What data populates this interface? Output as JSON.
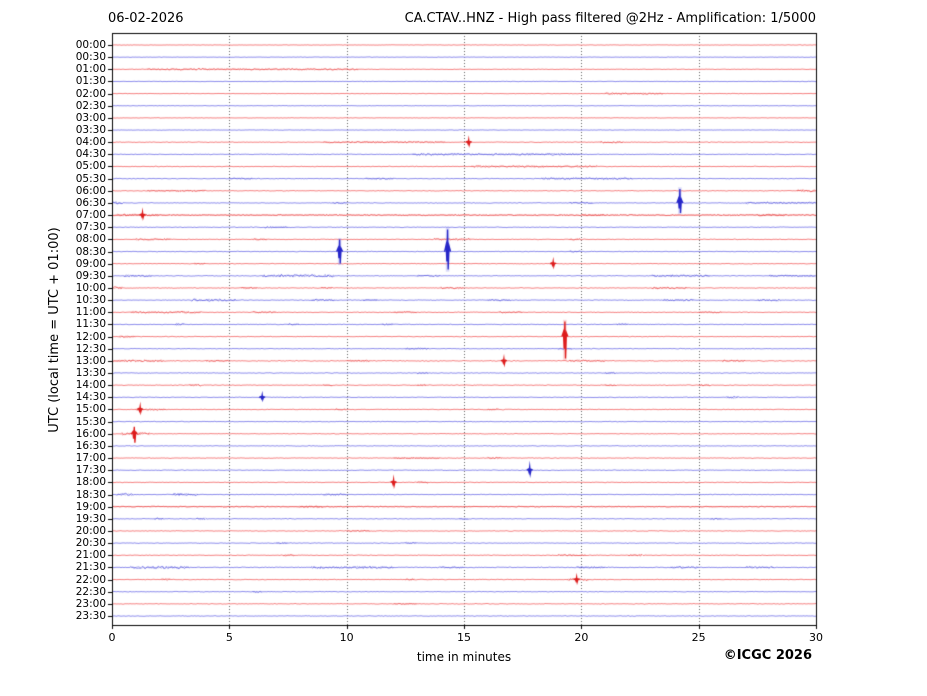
{
  "header": {
    "date": "06-02-2026",
    "title": "CA.CTAV..HNZ - High pass filtered @2Hz - Amplification: 1/5000"
  },
  "y_axis": {
    "label": "UTC (local time = UTC + 01:00)"
  },
  "x_axis": {
    "label": "time in minutes"
  },
  "footer": {
    "copyright": "©ICGC 2026"
  },
  "chart_data": {
    "type": "line",
    "subtype": "helicorder-drum-plot",
    "station": "CA.CTAV..HNZ",
    "date": "06-02-2026",
    "filter": "High pass filtered @2Hz",
    "amplification": "1/5000",
    "x_range": [
      0,
      30
    ],
    "x_ticks": [
      0,
      5,
      10,
      15,
      20,
      25,
      30
    ],
    "grid_minutes": [
      5,
      10,
      15,
      20,
      25
    ],
    "legend": "none",
    "colors": {
      "red_line": "#f58080",
      "red_dark": "#dd1c1c",
      "blue_line": "#8c8cec",
      "blue_dark": "#2626c8",
      "grid": "#606060",
      "frame": "#000000",
      "background": "#ffffff"
    },
    "rows": [
      {
        "label": "00:00",
        "color": "red"
      },
      {
        "label": "00:30",
        "color": "blue"
      },
      {
        "label": "01:00",
        "color": "red"
      },
      {
        "label": "01:30",
        "color": "blue"
      },
      {
        "label": "02:00",
        "color": "red"
      },
      {
        "label": "02:30",
        "color": "blue"
      },
      {
        "label": "03:00",
        "color": "red"
      },
      {
        "label": "03:30",
        "color": "blue"
      },
      {
        "label": "04:00",
        "color": "red"
      },
      {
        "label": "04:30",
        "color": "blue"
      },
      {
        "label": "05:00",
        "color": "red"
      },
      {
        "label": "05:30",
        "color": "blue"
      },
      {
        "label": "06:00",
        "color": "red"
      },
      {
        "label": "06:30",
        "color": "blue"
      },
      {
        "label": "07:00",
        "color": "red"
      },
      {
        "label": "07:30",
        "color": "blue"
      },
      {
        "label": "08:00",
        "color": "red"
      },
      {
        "label": "08:30",
        "color": "blue"
      },
      {
        "label": "09:00",
        "color": "red"
      },
      {
        "label": "09:30",
        "color": "blue"
      },
      {
        "label": "10:00",
        "color": "red"
      },
      {
        "label": "10:30",
        "color": "blue"
      },
      {
        "label": "11:00",
        "color": "red"
      },
      {
        "label": "11:30",
        "color": "blue"
      },
      {
        "label": "12:00",
        "color": "red"
      },
      {
        "label": "12:30",
        "color": "blue"
      },
      {
        "label": "13:00",
        "color": "red"
      },
      {
        "label": "13:30",
        "color": "blue"
      },
      {
        "label": "14:00",
        "color": "red"
      },
      {
        "label": "14:30",
        "color": "blue"
      },
      {
        "label": "15:00",
        "color": "red"
      },
      {
        "label": "15:30",
        "color": "blue"
      },
      {
        "label": "16:00",
        "color": "red"
      },
      {
        "label": "16:30",
        "color": "blue"
      },
      {
        "label": "17:00",
        "color": "red"
      },
      {
        "label": "17:30",
        "color": "blue"
      },
      {
        "label": "18:00",
        "color": "red"
      },
      {
        "label": "18:30",
        "color": "blue"
      },
      {
        "label": "19:00",
        "color": "red"
      },
      {
        "label": "19:30",
        "color": "blue"
      },
      {
        "label": "20:00",
        "color": "red"
      },
      {
        "label": "20:30",
        "color": "blue"
      },
      {
        "label": "21:00",
        "color": "red"
      },
      {
        "label": "21:30",
        "color": "blue"
      },
      {
        "label": "22:00",
        "color": "red"
      },
      {
        "label": "22:30",
        "color": "blue"
      },
      {
        "label": "23:00",
        "color": "red"
      },
      {
        "label": "23:30",
        "color": "blue"
      }
    ],
    "spikes": [
      {
        "row": 8,
        "minute": 15.2,
        "up": 2.5,
        "down": 2.5
      },
      {
        "row": 13,
        "minute": 24.2,
        "up": 14,
        "down": 10
      },
      {
        "row": 14,
        "minute": 1.3,
        "up": 3,
        "down": 2.5
      },
      {
        "row": 17,
        "minute": 9.7,
        "up": 12,
        "down": 12
      },
      {
        "row": 17,
        "minute": 14.3,
        "up": 22,
        "down": 18
      },
      {
        "row": 18,
        "minute": 18.8,
        "up": 2.5,
        "down": 2.5
      },
      {
        "row": 24,
        "minute": 19.3,
        "up": 15,
        "down": 22
      },
      {
        "row": 26,
        "minute": 16.7,
        "up": 2.5,
        "down": 3
      },
      {
        "row": 29,
        "minute": 6.4,
        "up": 2.5,
        "down": 2
      },
      {
        "row": 30,
        "minute": 1.2,
        "up": 3,
        "down": 2.5
      },
      {
        "row": 32,
        "minute": 0.95,
        "up": 7,
        "down": 9
      },
      {
        "row": 35,
        "minute": 17.8,
        "up": 3.5,
        "down": 3.5
      },
      {
        "row": 36,
        "minute": 12.0,
        "up": 3,
        "down": 3
      },
      {
        "row": 44,
        "minute": 19.8,
        "up": 2.5,
        "down": 2.5
      }
    ],
    "fuzz_segments": [
      [
        2,
        1.5,
        10.5,
        0.9
      ],
      [
        4,
        21,
        23.5,
        0.9
      ],
      [
        8,
        9,
        14.2,
        0.9
      ],
      [
        8,
        20.8,
        21.8,
        0.8
      ],
      [
        9,
        12.8,
        20,
        0.95
      ],
      [
        10,
        15.3,
        20.7,
        0.95
      ],
      [
        11,
        5,
        6,
        0.8
      ],
      [
        11,
        10.8,
        12,
        0.9
      ],
      [
        11,
        18.3,
        22.2,
        1.1
      ],
      [
        12,
        1.5,
        4,
        0.8
      ],
      [
        12,
        29.2,
        30,
        1.4
      ],
      [
        13,
        0,
        0.5,
        1.7
      ],
      [
        13,
        9.4,
        10,
        1.2
      ],
      [
        13,
        19.5,
        20.5,
        0.8
      ],
      [
        13,
        27,
        30,
        0.95
      ],
      [
        14,
        0,
        30,
        0.75
      ],
      [
        14,
        0.2,
        2,
        1.2
      ],
      [
        14,
        20,
        21,
        1.0
      ],
      [
        14,
        27.5,
        28.7,
        1.3
      ],
      [
        15,
        6.5,
        7.5,
        0.8
      ],
      [
        16,
        1,
        2.5,
        1.0
      ],
      [
        16,
        6,
        6.6,
        1.0
      ],
      [
        16,
        13.7,
        15.3,
        1.15
      ],
      [
        16,
        19.5,
        20,
        1.0
      ],
      [
        17,
        19.5,
        20,
        1.0
      ],
      [
        18,
        3.5,
        4,
        0.8
      ],
      [
        19,
        0.5,
        1.7,
        1.1
      ],
      [
        19,
        6.4,
        9.5,
        1.4
      ],
      [
        19,
        13,
        14,
        1.0
      ],
      [
        19,
        23,
        25.5,
        1.15
      ],
      [
        19,
        28,
        30,
        1.0
      ],
      [
        20,
        0,
        0.45,
        1.9
      ],
      [
        20,
        5.5,
        6.2,
        1.15
      ],
      [
        20,
        8.9,
        9.4,
        1.0
      ],
      [
        20,
        14,
        15,
        0.95
      ],
      [
        20,
        23,
        24.5,
        1.1
      ],
      [
        21,
        3.4,
        5.3,
        1.5
      ],
      [
        21,
        8.5,
        9.5,
        1.15
      ],
      [
        21,
        10.7,
        11.3,
        1.0
      ],
      [
        21,
        16,
        17,
        0.85
      ],
      [
        21,
        23.5,
        24.8,
        1.0
      ],
      [
        21,
        27.5,
        28.5,
        1.0
      ],
      [
        22,
        0.8,
        3.8,
        1.1
      ],
      [
        22,
        6,
        7,
        0.85
      ],
      [
        22,
        12,
        13,
        0.85
      ],
      [
        22,
        16.5,
        17.5,
        0.85
      ],
      [
        22,
        25,
        26,
        0.85
      ],
      [
        23,
        2.7,
        3.1,
        1.15
      ],
      [
        23,
        7.5,
        8,
        1.0
      ],
      [
        23,
        11.5,
        12,
        0.85
      ],
      [
        23,
        21.5,
        22,
        0.85
      ],
      [
        24,
        0.3,
        1,
        0.85
      ],
      [
        25,
        12.5,
        13.5,
        0.85
      ],
      [
        25,
        19,
        19.6,
        1.0
      ],
      [
        26,
        0,
        2.2,
        1.25
      ],
      [
        26,
        4,
        5,
        1.0
      ],
      [
        26,
        10,
        11,
        1.0
      ],
      [
        26,
        19.5,
        21,
        1.1
      ],
      [
        26,
        26,
        27,
        0.95
      ],
      [
        27,
        13,
        13.5,
        0.85
      ],
      [
        27,
        21,
        21.5,
        0.95
      ],
      [
        28,
        3.3,
        3.8,
        1.15
      ],
      [
        28,
        9,
        9.4,
        0.85
      ],
      [
        28,
        13,
        13.4,
        0.85
      ],
      [
        28,
        21,
        21.5,
        0.85
      ],
      [
        28,
        25,
        25.5,
        0.85
      ],
      [
        29,
        26.2,
        26.7,
        0.95
      ],
      [
        30,
        1,
        2.3,
        1.0
      ],
      [
        30,
        9.5,
        10,
        0.95
      ],
      [
        30,
        16,
        16.5,
        0.85
      ],
      [
        32,
        0.4,
        1.6,
        1.4
      ],
      [
        34,
        12,
        14,
        0.8
      ],
      [
        34,
        16,
        16.6,
        1.1
      ],
      [
        36,
        13,
        13.5,
        0.95
      ],
      [
        37,
        0.2,
        0.9,
        1.35
      ],
      [
        37,
        2.6,
        3.7,
        1.35
      ],
      [
        37,
        9,
        10,
        1.0
      ],
      [
        38,
        0,
        30,
        0.6
      ],
      [
        38,
        8,
        9,
        0.95
      ],
      [
        39,
        1.8,
        2.2,
        1.15
      ],
      [
        39,
        3.6,
        4,
        1.0
      ],
      [
        39,
        14.8,
        15.2,
        0.95
      ],
      [
        39,
        25.5,
        26,
        0.85
      ],
      [
        40,
        10,
        11,
        0.7
      ],
      [
        41,
        7,
        7.5,
        0.95
      ],
      [
        41,
        12.5,
        13,
        0.85
      ],
      [
        42,
        7.3,
        7.8,
        0.95
      ],
      [
        42,
        19,
        20.2,
        0.95
      ],
      [
        42,
        22,
        22.6,
        0.95
      ],
      [
        43,
        0.8,
        3.3,
        1.5
      ],
      [
        43,
        8.5,
        12,
        1.25
      ],
      [
        43,
        14,
        15,
        1.0
      ],
      [
        43,
        19.8,
        21,
        1.0
      ],
      [
        43,
        23.8,
        25,
        1.0
      ],
      [
        43,
        27,
        28.2,
        1.0
      ],
      [
        44,
        2.1,
        2.5,
        1.15
      ],
      [
        44,
        12.5,
        12.9,
        1.0
      ],
      [
        44,
        19.4,
        20.3,
        1.25
      ],
      [
        45,
        6,
        6.4,
        0.95
      ],
      [
        46,
        12,
        13,
        0.6
      ]
    ],
    "base_noise": 0.42,
    "row_noise": {
      "0": 0.3,
      "1": 0.3,
      "2": 0.32,
      "3": 0.3,
      "4": 0.32,
      "5": 0.3,
      "6": 0.3,
      "7": 0.3,
      "14": 0.55,
      "26": 0.55,
      "38": 0.55,
      "43": 0.55
    }
  }
}
